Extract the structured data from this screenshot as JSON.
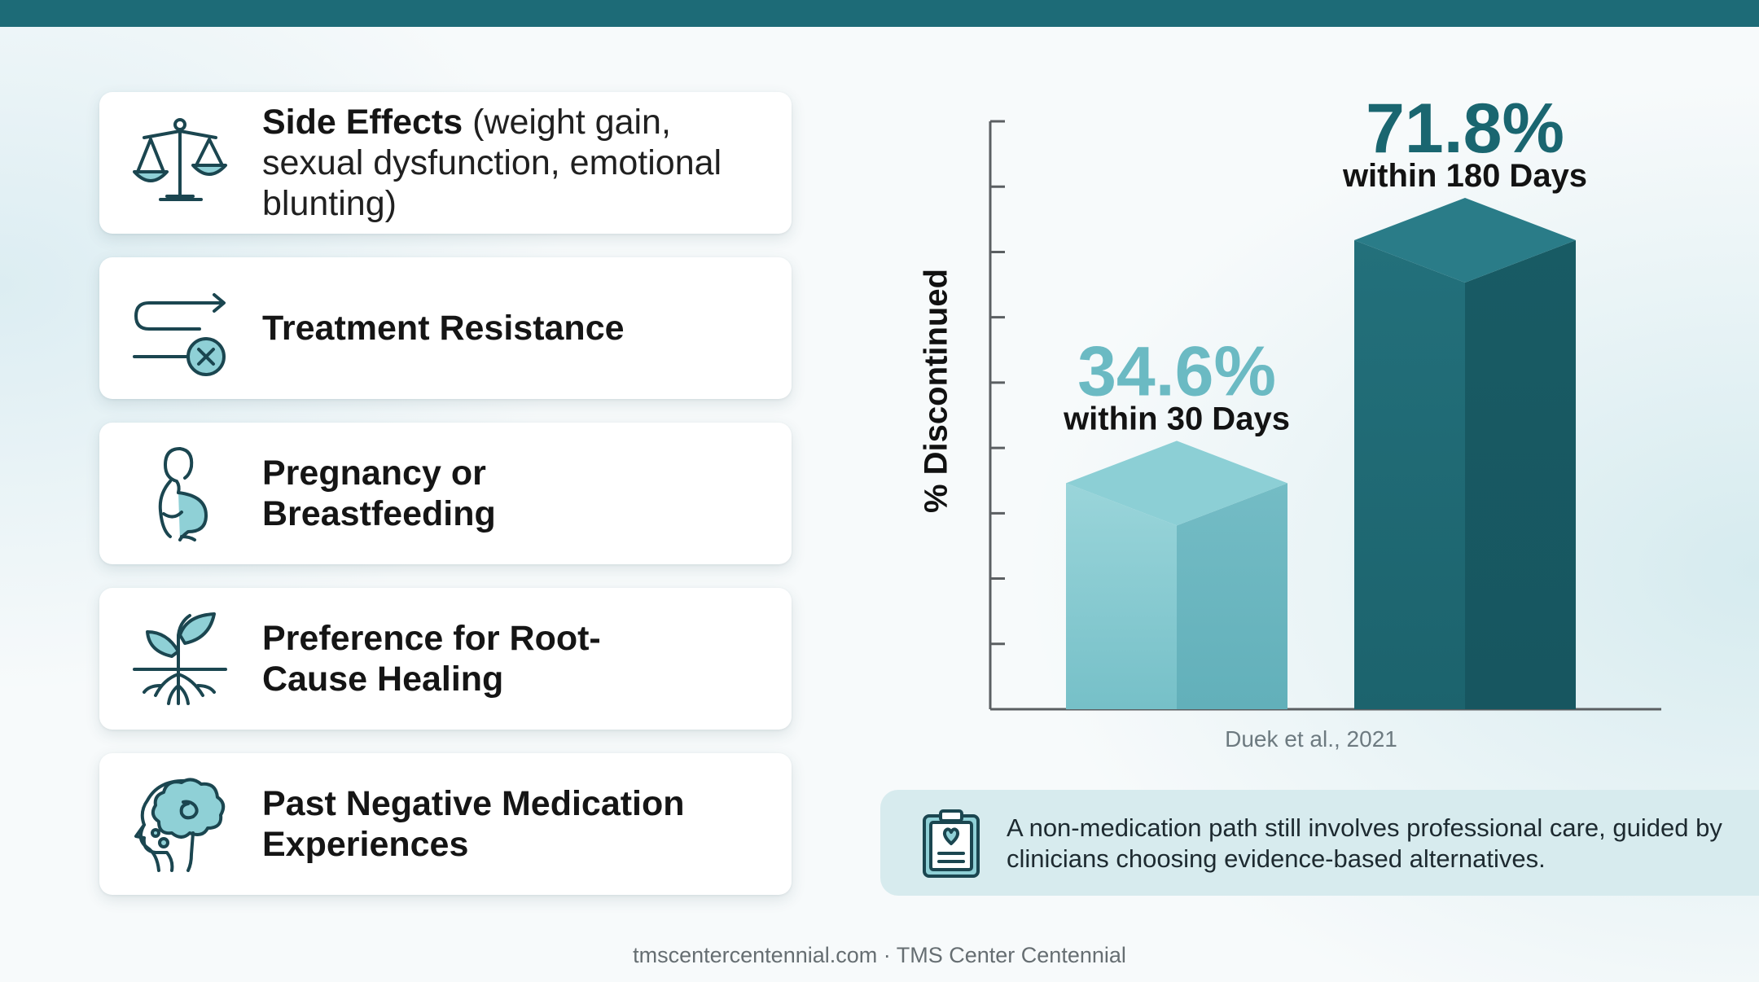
{
  "reasons": [
    {
      "title": "Side Effects",
      "detail": "(weight gain, sexual dysfunction, emotional blunting)",
      "icon": "scales-icon"
    },
    {
      "title": "Treatment Resistance",
      "detail": "",
      "icon": "path-blocked-icon"
    },
    {
      "title": "Pregnancy or Breastfeeding",
      "detail": "",
      "icon": "pregnant-woman-icon"
    },
    {
      "title": "Preference for Root-Cause Healing",
      "detail": "",
      "icon": "sprout-roots-icon"
    },
    {
      "title": "Past Negative Medication Experiences",
      "detail": "",
      "icon": "head-brain-icon"
    }
  ],
  "chart_data": {
    "type": "bar",
    "ylabel": "% Discontinued",
    "ylim": [
      0,
      90
    ],
    "categories": [
      "within 30 Days",
      "within 180 Days"
    ],
    "values": [
      34.6,
      71.8
    ],
    "value_labels": [
      "34.6%",
      "71.8%"
    ],
    "colors": [
      "#7cc3cb",
      "#1d6b77"
    ],
    "value_label_colors": [
      "#6bbac3",
      "#1a6670"
    ],
    "source": "Duek et al., 2021"
  },
  "note": {
    "text": "A non-medication path still involves professional care, guided by clinicians choosing evidence-based alternatives.",
    "icon": "clipboard-heart-icon"
  },
  "footer": "tmscentercentennial.com · TMS Center Centennial"
}
